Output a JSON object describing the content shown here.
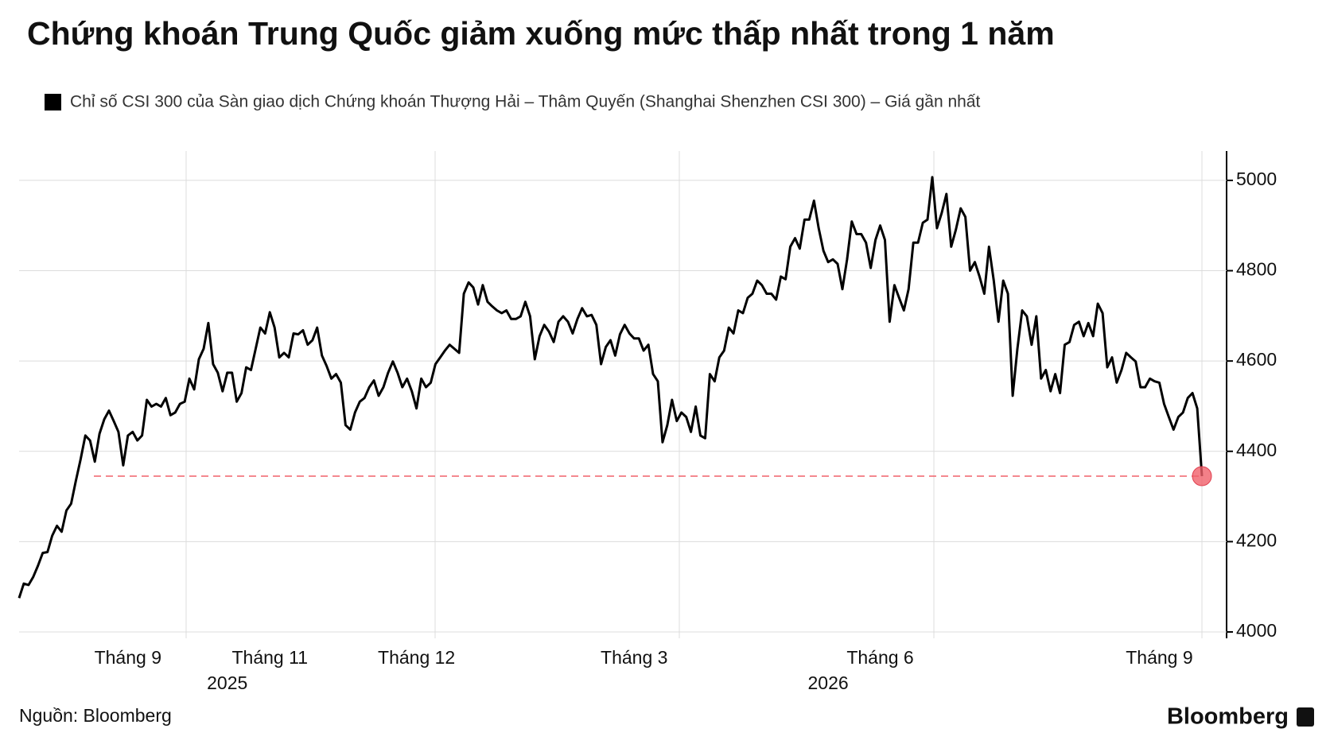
{
  "chart_data": {
    "type": "line",
    "title": "Chứng khoán Trung Quốc giảm xuống mức thấp nhất trong 1 năm",
    "source": "Nguồn: Bloomberg",
    "brand": "Bloomberg",
    "series": [
      {
        "name": "Chỉ số CSI 300 của Sàn giao dịch Chứng khoán Thượng Hải – Thâm Quyến (Shanghai Shenzhen CSI 300) – Giá gần nhất",
        "color": "#000000",
        "values": [
          4075,
          4107,
          4104,
          4122,
          4147,
          4175,
          4177,
          4213,
          4235,
          4222,
          4269,
          4284,
          4335,
          4382,
          4435,
          4424,
          4377,
          4439,
          4471,
          4490,
          4467,
          4443,
          4369,
          4435,
          4443,
          4424,
          4435,
          4514,
          4499,
          4505,
          4499,
          4518,
          4480,
          4486,
          4505,
          4510,
          4561,
          4537,
          4604,
          4627,
          4684,
          4593,
          4574,
          4533,
          4574,
          4574,
          4510,
          4529,
          4586,
          4580,
          4627,
          4674,
          4661,
          4708,
          4674,
          4608,
          4618,
          4608,
          4661,
          4659,
          4668,
          4636,
          4646,
          4674,
          4612,
          4589,
          4561,
          4571,
          4552,
          4458,
          4448,
          4486,
          4510,
          4518,
          4542,
          4557,
          4523,
          4542,
          4574,
          4599,
          4574,
          4542,
          4561,
          4533,
          4495,
          4561,
          4542,
          4552,
          4593,
          4608,
          4623,
          4636,
          4627,
          4618,
          4749,
          4774,
          4763,
          4725,
          4768,
          4731,
          4721,
          4712,
          4706,
          4712,
          4693,
          4693,
          4699,
          4731,
          4699,
          4604,
          4655,
          4680,
          4665,
          4642,
          4687,
          4699,
          4687,
          4661,
          4693,
          4717,
          4699,
          4702,
          4680,
          4593,
          4631,
          4646,
          4612,
          4659,
          4680,
          4661,
          4650,
          4650,
          4623,
          4636,
          4571,
          4555,
          4420,
          4458,
          4514,
          4467,
          4486,
          4476,
          4443,
          4499,
          4435,
          4429,
          4571,
          4555,
          4608,
          4623,
          4674,
          4661,
          4712,
          4706,
          4740,
          4749,
          4778,
          4768,
          4749,
          4749,
          4736,
          4787,
          4781,
          4853,
          4872,
          4849,
          4913,
          4913,
          4955,
          4894,
          4844,
          4819,
          4825,
          4815,
          4759,
          4825,
          4909,
          4881,
          4881,
          4862,
          4806,
          4868,
          4900,
          4868,
          4687,
          4768,
          4740,
          4712,
          4759,
          4862,
          4862,
          4906,
          4913,
          5007,
          4894,
          4928,
          4970,
          4853,
          4891,
          4938,
          4919,
          4800,
          4819,
          4787,
          4749,
          4853,
          4778,
          4687,
          4778,
          4749,
          4523,
          4627,
          4712,
          4699,
          4636,
          4699,
          4561,
          4580,
          4533,
          4571,
          4529,
          4636,
          4642,
          4680,
          4687,
          4655,
          4684,
          4655,
          4727,
          4706,
          4586,
          4608,
          4552,
          4580,
          4618,
          4608,
          4599,
          4542,
          4542,
          4561,
          4555,
          4552,
          4505,
          4476,
          4448,
          4476,
          4486,
          4518,
          4529,
          4495,
          4345
        ]
      }
    ],
    "marker_color": "#f0606a",
    "ylim": [
      4000,
      5065
    ],
    "yticks": [
      4000,
      4200,
      4400,
      4600,
      4800,
      5000
    ],
    "xticks": [
      {
        "value": 23,
        "label": "Tháng 9"
      },
      {
        "value": 53,
        "label": "Tháng 11"
      },
      {
        "value": 84,
        "label": "Tháng 12"
      },
      {
        "value": 130,
        "label": "Tháng 3"
      },
      {
        "value": 182,
        "label": "Tháng 6"
      },
      {
        "value": 241,
        "label": "Tháng 9"
      }
    ],
    "year_labels": [
      {
        "value": 44,
        "label": "2025"
      },
      {
        "value": 171,
        "label": "2026"
      }
    ],
    "grid": true
  }
}
